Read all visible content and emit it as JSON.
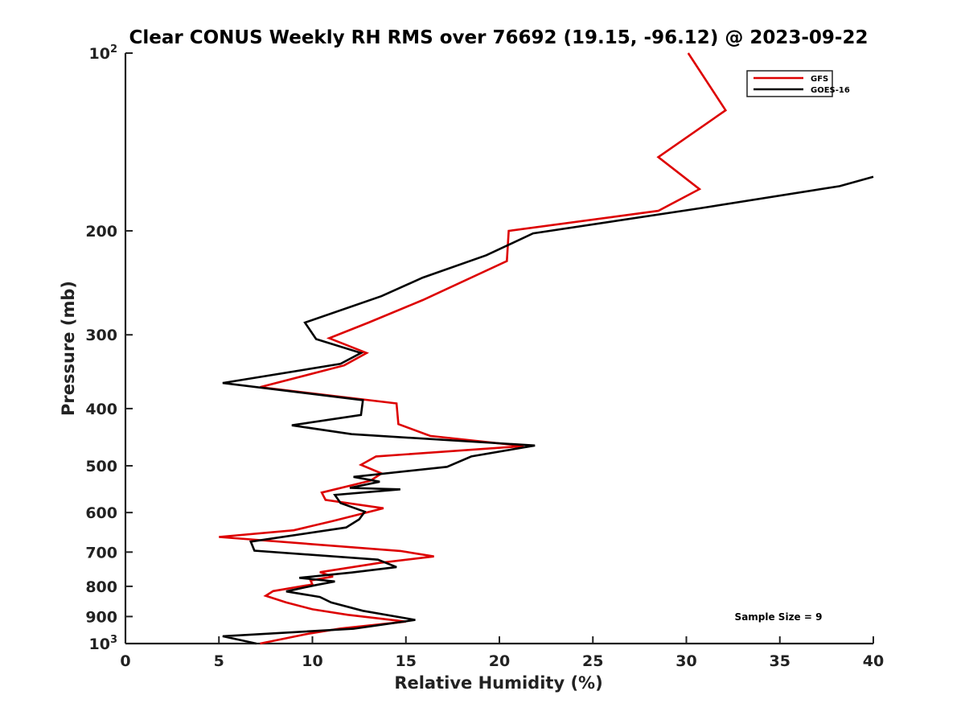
{
  "chart_data": {
    "type": "line",
    "title": "Clear CONUS Weekly RH RMS over 76692 (19.15, -96.12) @ 2023-09-22",
    "xlabel": "Relative Humidity (%)",
    "ylabel": "Pressure (mb)",
    "xlim": [
      0,
      40
    ],
    "ylim": [
      100,
      1000
    ],
    "yscale": "log",
    "yreversed": true,
    "x_ticks": [
      0,
      5,
      10,
      15,
      20,
      25,
      30,
      35,
      40
    ],
    "y_ticks": [
      {
        "value": 100,
        "label": "10",
        "sup": "2"
      },
      {
        "value": 200,
        "label": "200"
      },
      {
        "value": 300,
        "label": "300"
      },
      {
        "value": 400,
        "label": "400"
      },
      {
        "value": 500,
        "label": "500"
      },
      {
        "value": 600,
        "label": "600"
      },
      {
        "value": 700,
        "label": "700"
      },
      {
        "value": 800,
        "label": "800"
      },
      {
        "value": 900,
        "label": "900"
      },
      {
        "value": 1000,
        "label": "10",
        "sup": "3"
      }
    ],
    "legend_position": "top-right",
    "annotation": "Sample Size = 9",
    "series": [
      {
        "name": "GFS",
        "color": "#dd0000",
        "points": [
          [
            30.1,
            100
          ],
          [
            32.1,
            125
          ],
          [
            28.5,
            150
          ],
          [
            30.7,
            170
          ],
          [
            28.5,
            185
          ],
          [
            20.5,
            200
          ],
          [
            20.4,
            225
          ],
          [
            15.9,
            262
          ],
          [
            13.0,
            286
          ],
          [
            10.9,
            304
          ],
          [
            12.9,
            322
          ],
          [
            11.7,
            338
          ],
          [
            7.2,
            368
          ],
          [
            14.5,
            392
          ],
          [
            14.6,
            425
          ],
          [
            16.3,
            445
          ],
          [
            21.3,
            463
          ],
          [
            13.4,
            482
          ],
          [
            12.6,
            498
          ],
          [
            13.7,
            515
          ],
          [
            13.1,
            530
          ],
          [
            10.5,
            555
          ],
          [
            10.7,
            571
          ],
          [
            13.8,
            590
          ],
          [
            11.1,
            620
          ],
          [
            9.0,
            643
          ],
          [
            5.0,
            660
          ],
          [
            14.7,
            697
          ],
          [
            16.5,
            712
          ],
          [
            13.6,
            730
          ],
          [
            10.4,
            757
          ],
          [
            11.1,
            770
          ],
          [
            9.9,
            782
          ],
          [
            10.0,
            794
          ],
          [
            7.9,
            815
          ],
          [
            7.5,
            830
          ],
          [
            8.6,
            852
          ],
          [
            10.0,
            875
          ],
          [
            11.9,
            894
          ],
          [
            15.0,
            918
          ],
          [
            11.5,
            943
          ],
          [
            9.8,
            962
          ],
          [
            7.2,
            1000
          ]
        ]
      },
      {
        "name": "GOES-16",
        "color": "#000000",
        "points": [
          [
            40.0,
            162
          ],
          [
            38.2,
            168
          ],
          [
            30.8,
            183
          ],
          [
            21.8,
            202
          ],
          [
            19.3,
            220
          ],
          [
            15.9,
            240
          ],
          [
            13.7,
            258
          ],
          [
            9.6,
            286
          ],
          [
            10.2,
            305
          ],
          [
            12.6,
            322
          ],
          [
            11.5,
            336
          ],
          [
            5.2,
            362
          ],
          [
            12.7,
            387
          ],
          [
            12.6,
            410
          ],
          [
            8.9,
            427
          ],
          [
            12.1,
            442
          ],
          [
            21.9,
            462
          ],
          [
            18.5,
            482
          ],
          [
            17.2,
            502
          ],
          [
            12.2,
            522
          ],
          [
            13.6,
            532
          ],
          [
            12.0,
            545
          ],
          [
            14.7,
            548
          ],
          [
            11.2,
            560
          ],
          [
            11.5,
            578
          ],
          [
            12.8,
            598
          ],
          [
            12.5,
            616
          ],
          [
            11.8,
            636
          ],
          [
            6.7,
            672
          ],
          [
            6.9,
            696
          ],
          [
            13.5,
            721
          ],
          [
            14.5,
            742
          ],
          [
            12.1,
            758
          ],
          [
            9.3,
            774
          ],
          [
            11.2,
            785
          ],
          [
            10.1,
            797
          ],
          [
            8.6,
            816
          ],
          [
            10.4,
            834
          ],
          [
            11.0,
            852
          ],
          [
            12.7,
            880
          ],
          [
            15.5,
            912
          ],
          [
            12.2,
            944
          ],
          [
            5.2,
            972
          ],
          [
            7.0,
            1000
          ]
        ]
      }
    ]
  }
}
